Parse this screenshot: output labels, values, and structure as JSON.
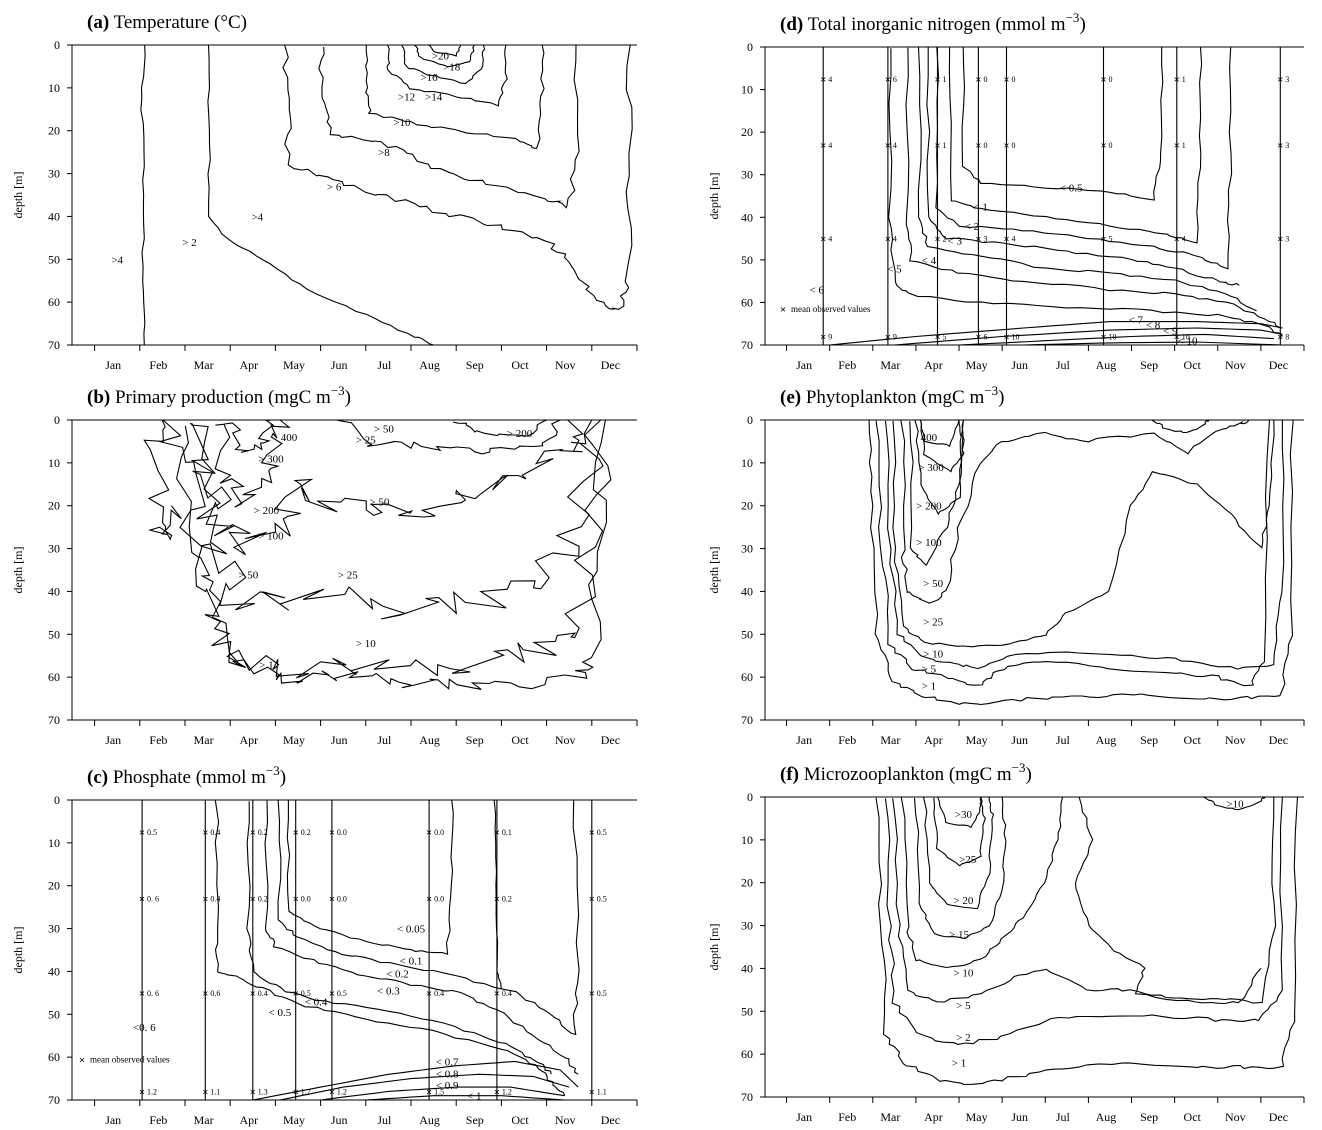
{
  "chart_data": [
    {
      "id": "a",
      "type": "contour",
      "letter": "(a)",
      "title": "Temperature (°C)",
      "unit_sup": "",
      "ylabel": "depth [m]",
      "ylim": [
        0,
        70
      ],
      "yticks": [
        0,
        10,
        20,
        30,
        40,
        50,
        60,
        70
      ],
      "months": [
        "Jan",
        "Feb",
        "Mar",
        "Apr",
        "May",
        "Jun",
        "Jul",
        "Aug",
        "Sep",
        "Oct",
        "Nov",
        "Dec"
      ],
      "labels": [
        {
          "text": ">4",
          "x": 1.0,
          "y": 50
        },
        {
          "text": "> 2",
          "x": 2.6,
          "y": 46
        },
        {
          "text": ">4",
          "x": 4.1,
          "y": 40
        },
        {
          "text": "> 6",
          "x": 5.8,
          "y": 33
        },
        {
          "text": ">8",
          "x": 6.9,
          "y": 25
        },
        {
          "text": ">10",
          "x": 7.3,
          "y": 18
        },
        {
          "text": ">12",
          "x": 7.4,
          "y": 12
        },
        {
          "text": ">14",
          "x": 8.0,
          "y": 12
        },
        {
          "text": ">16",
          "x": 7.9,
          "y": 7.5
        },
        {
          "text": ">18",
          "x": 8.4,
          "y": 5
        },
        {
          "text": ">20",
          "x": 8.15,
          "y": 2.5
        }
      ]
    },
    {
      "id": "b",
      "type": "contour",
      "letter": "(b)",
      "title": "Primary production (mgC m",
      "unit_sup": "−3",
      "title_end": ")",
      "ylabel": "depth [m]",
      "ylim": [
        0,
        70
      ],
      "yticks": [
        0,
        10,
        20,
        30,
        40,
        50,
        60,
        70
      ],
      "months": [
        "Jan",
        "Feb",
        "Mar",
        "Apr",
        "May",
        "Jun",
        "Jul",
        "Aug",
        "Sep",
        "Oct",
        "Nov",
        "Dec"
      ],
      "labels": [
        {
          "text": "> 50",
          "x": 6.9,
          "y": 2
        },
        {
          "text": "> 25",
          "x": 6.5,
          "y": 4.5
        },
        {
          "text": "> 200",
          "x": 9.9,
          "y": 3
        },
        {
          "text": "400",
          "x": 4.8,
          "y": 4
        },
        {
          "text": "> 300",
          "x": 4.4,
          "y": 9
        },
        {
          "text": "> 200",
          "x": 4.3,
          "y": 21
        },
        {
          "text": "> 50",
          "x": 6.8,
          "y": 19
        },
        {
          "text": "> 100",
          "x": 4.4,
          "y": 27
        },
        {
          "text": "> 50",
          "x": 3.9,
          "y": 36
        },
        {
          "text": "> 25",
          "x": 6.1,
          "y": 36
        },
        {
          "text": "> 10",
          "x": 6.5,
          "y": 52
        },
        {
          "text": "> 1",
          "x": 4.3,
          "y": 57
        }
      ]
    },
    {
      "id": "c",
      "type": "contour",
      "letter": "(c)",
      "title": "Phosphate (mmol m",
      "unit_sup": "−3",
      "title_end": ")",
      "ylabel": "depth [m]",
      "ylim": [
        0,
        70
      ],
      "yticks": [
        0,
        10,
        20,
        30,
        40,
        50,
        60,
        70
      ],
      "months": [
        "Jan",
        "Feb",
        "Mar",
        "Apr",
        "May",
        "Jun",
        "Jul",
        "Aug",
        "Sep",
        "Oct",
        "Nov",
        "Dec"
      ],
      "labels": [
        {
          "text": "< 0.05",
          "x": 7.5,
          "y": 30
        },
        {
          "text": "< 0.1",
          "x": 7.5,
          "y": 37.5
        },
        {
          "text": "< 0.2",
          "x": 7.2,
          "y": 40.5
        },
        {
          "text": "< 0.3",
          "x": 7.0,
          "y": 44.5
        },
        {
          "text": "< 0.4",
          "x": 5.4,
          "y": 47
        },
        {
          "text": "< 0.5",
          "x": 4.6,
          "y": 49.5
        },
        {
          "text": "<0. 6",
          "x": 1.6,
          "y": 53
        },
        {
          "text": "< 0.7",
          "x": 8.3,
          "y": 61
        },
        {
          "text": "< 0.8",
          "x": 8.3,
          "y": 63.8
        },
        {
          "text": "< 0.9",
          "x": 8.3,
          "y": 66.5
        },
        {
          "text": "< 1",
          "x": 8.9,
          "y": 69
        }
      ],
      "obs_legend": "mean observed values",
      "obs_columns": [
        {
          "x": 1.55,
          "values": [
            "0.5",
            "0. 6",
            "0. 6",
            "1.2"
          ]
        },
        {
          "x": 2.95,
          "values": [
            "0.4",
            "0.4",
            "0.6",
            "1.1"
          ]
        },
        {
          "x": 4.0,
          "values": [
            "0.2",
            "0.2",
            "0.4",
            "1.3"
          ]
        },
        {
          "x": 4.95,
          "values": [
            "0.2",
            "0.0",
            "0.5",
            "1.7"
          ]
        },
        {
          "x": 5.75,
          "values": [
            "0.0",
            "0.0",
            "0.5",
            "1.2"
          ]
        },
        {
          "x": 7.9,
          "values": [
            "0.0",
            "0.0",
            "0.4",
            "1.5"
          ]
        },
        {
          "x": 9.4,
          "values": [
            "0.1",
            "0.2",
            "0.4",
            "1.2"
          ]
        },
        {
          "x": 11.5,
          "values": [
            "0.5",
            "0.5",
            "0.5",
            "1.1"
          ]
        }
      ]
    },
    {
      "id": "d",
      "type": "contour",
      "letter": "(d)",
      "title": "Total inorganic nitrogen (mmol m",
      "unit_sup": "−3",
      "title_end": ")",
      "ylabel": "depth [m]",
      "ylim": [
        0,
        70
      ],
      "yticks": [
        0,
        10,
        20,
        30,
        40,
        50,
        60,
        70
      ],
      "months": [
        "Jan",
        "Feb",
        "Mar",
        "Apr",
        "May",
        "Jun",
        "Jul",
        "Aug",
        "Sep",
        "Oct",
        "Nov",
        "Dec"
      ],
      "labels": [
        {
          "text": "< 0.5",
          "x": 7.1,
          "y": 33
        },
        {
          "text": "< 1",
          "x": 5.0,
          "y": 37.5
        },
        {
          "text": "< 2",
          "x": 4.8,
          "y": 42
        },
        {
          "text": "< 3",
          "x": 4.4,
          "y": 45.5
        },
        {
          "text": "< 4",
          "x": 3.8,
          "y": 50
        },
        {
          "text": "< 5",
          "x": 3.0,
          "y": 52
        },
        {
          "text": "< 6",
          "x": 1.2,
          "y": 57
        },
        {
          "text": "< 7",
          "x": 8.6,
          "y": 64
        },
        {
          "text": "< 8",
          "x": 9.0,
          "y": 65.2
        },
        {
          "text": "< 9",
          "x": 9.4,
          "y": 66.6
        },
        {
          "text": "< 10",
          "x": 9.8,
          "y": 69
        }
      ],
      "obs_legend": "mean observed values",
      "obs_columns": [
        {
          "x": 1.35,
          "values": [
            "4",
            "4",
            "4",
            "9"
          ]
        },
        {
          "x": 2.85,
          "values": [
            "6",
            "4",
            "4",
            "9"
          ]
        },
        {
          "x": 4.0,
          "values": [
            "1",
            "1",
            "2",
            "5"
          ]
        },
        {
          "x": 4.95,
          "values": [
            "0",
            "0",
            "3",
            "6"
          ]
        },
        {
          "x": 5.6,
          "values": [
            "0",
            "0",
            "4",
            "10"
          ]
        },
        {
          "x": 7.85,
          "values": [
            "0",
            "0",
            "5",
            "10"
          ]
        },
        {
          "x": 9.55,
          "values": [
            "1",
            "1",
            "4",
            "10"
          ]
        },
        {
          "x": 11.95,
          "values": [
            "3",
            "3",
            "3",
            "8"
          ]
        }
      ]
    },
    {
      "id": "e",
      "type": "contour",
      "letter": "(e)",
      "title": "Phytoplankton (mgC m",
      "unit_sup": "−3",
      "title_end": ")",
      "ylabel": "depth [m]",
      "ylim": [
        0,
        70
      ],
      "yticks": [
        0,
        10,
        20,
        30,
        40,
        50,
        60,
        70
      ],
      "months": [
        "Jan",
        "Feb",
        "Mar",
        "Apr",
        "May",
        "Jun",
        "Jul",
        "Aug",
        "Sep",
        "Oct",
        "Nov",
        "Dec"
      ],
      "labels": [
        {
          "text": "400",
          "x": 3.8,
          "y": 4
        },
        {
          "text": "> 300",
          "x": 3.85,
          "y": 11
        },
        {
          "text": "> 200",
          "x": 3.8,
          "y": 20
        },
        {
          "text": "> 100",
          "x": 3.8,
          "y": 28.5
        },
        {
          "text": "> 50",
          "x": 3.9,
          "y": 38
        },
        {
          "text": "> 25",
          "x": 3.9,
          "y": 47
        },
        {
          "text": "> 10",
          "x": 3.9,
          "y": 54.5
        },
        {
          "text": "> 5",
          "x": 3.8,
          "y": 58
        },
        {
          "text": "> 1",
          "x": 3.8,
          "y": 62
        }
      ]
    },
    {
      "id": "f",
      "type": "contour",
      "letter": "(f)",
      "title": "Microzooplankton (mgC m",
      "unit_sup": "−3",
      "title_end": ")",
      "ylabel": "depth [m]",
      "ylim": [
        0,
        70
      ],
      "yticks": [
        0,
        10,
        20,
        30,
        40,
        50,
        60,
        70
      ],
      "months": [
        "Jan",
        "Feb",
        "Mar",
        "Apr",
        "May",
        "Jun",
        "Jul",
        "Aug",
        "Sep",
        "Oct",
        "Nov",
        "Dec"
      ],
      "labels": [
        {
          "text": ">30",
          "x": 4.6,
          "y": 4
        },
        {
          "text": ">25",
          "x": 4.7,
          "y": 14.5
        },
        {
          "text": "> 20",
          "x": 4.6,
          "y": 24
        },
        {
          "text": "> 15",
          "x": 4.5,
          "y": 32
        },
        {
          "text": "> 10",
          "x": 4.6,
          "y": 41
        },
        {
          "text": "> 5",
          "x": 4.6,
          "y": 48.5
        },
        {
          "text": "> 2",
          "x": 4.6,
          "y": 56
        },
        {
          "text": "> 1",
          "x": 4.5,
          "y": 62
        },
        {
          "text": ">10",
          "x": 10.9,
          "y": 1.5
        }
      ]
    }
  ]
}
